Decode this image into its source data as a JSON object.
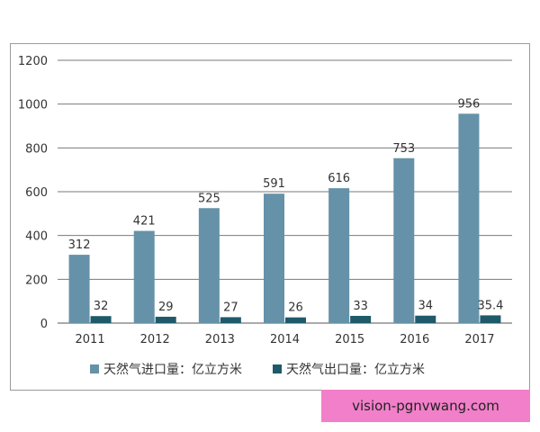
{
  "chart_data": {
    "type": "bar",
    "title": "",
    "xlabel": "",
    "ylabel": "",
    "categories": [
      "2011",
      "2012",
      "2013",
      "2014",
      "2015",
      "2016",
      "2017"
    ],
    "series": [
      {
        "name": "天然气进口量：亿立方米",
        "color": "#6592a8",
        "values": [
          312,
          421,
          525,
          591,
          616,
          753,
          956
        ]
      },
      {
        "name": "天然气出口量：亿立方米",
        "color": "#1f5a6b",
        "values": [
          32,
          29,
          27,
          26,
          33,
          34,
          35.4
        ]
      }
    ],
    "ylim": [
      0,
      1200
    ],
    "yticks": [
      0,
      200,
      400,
      600,
      800,
      1000,
      1200
    ],
    "grid": true,
    "legend_position": "bottom"
  },
  "watermark": {
    "text": "vision-pgnvwang.com",
    "bg_color": "#f27fc9"
  }
}
